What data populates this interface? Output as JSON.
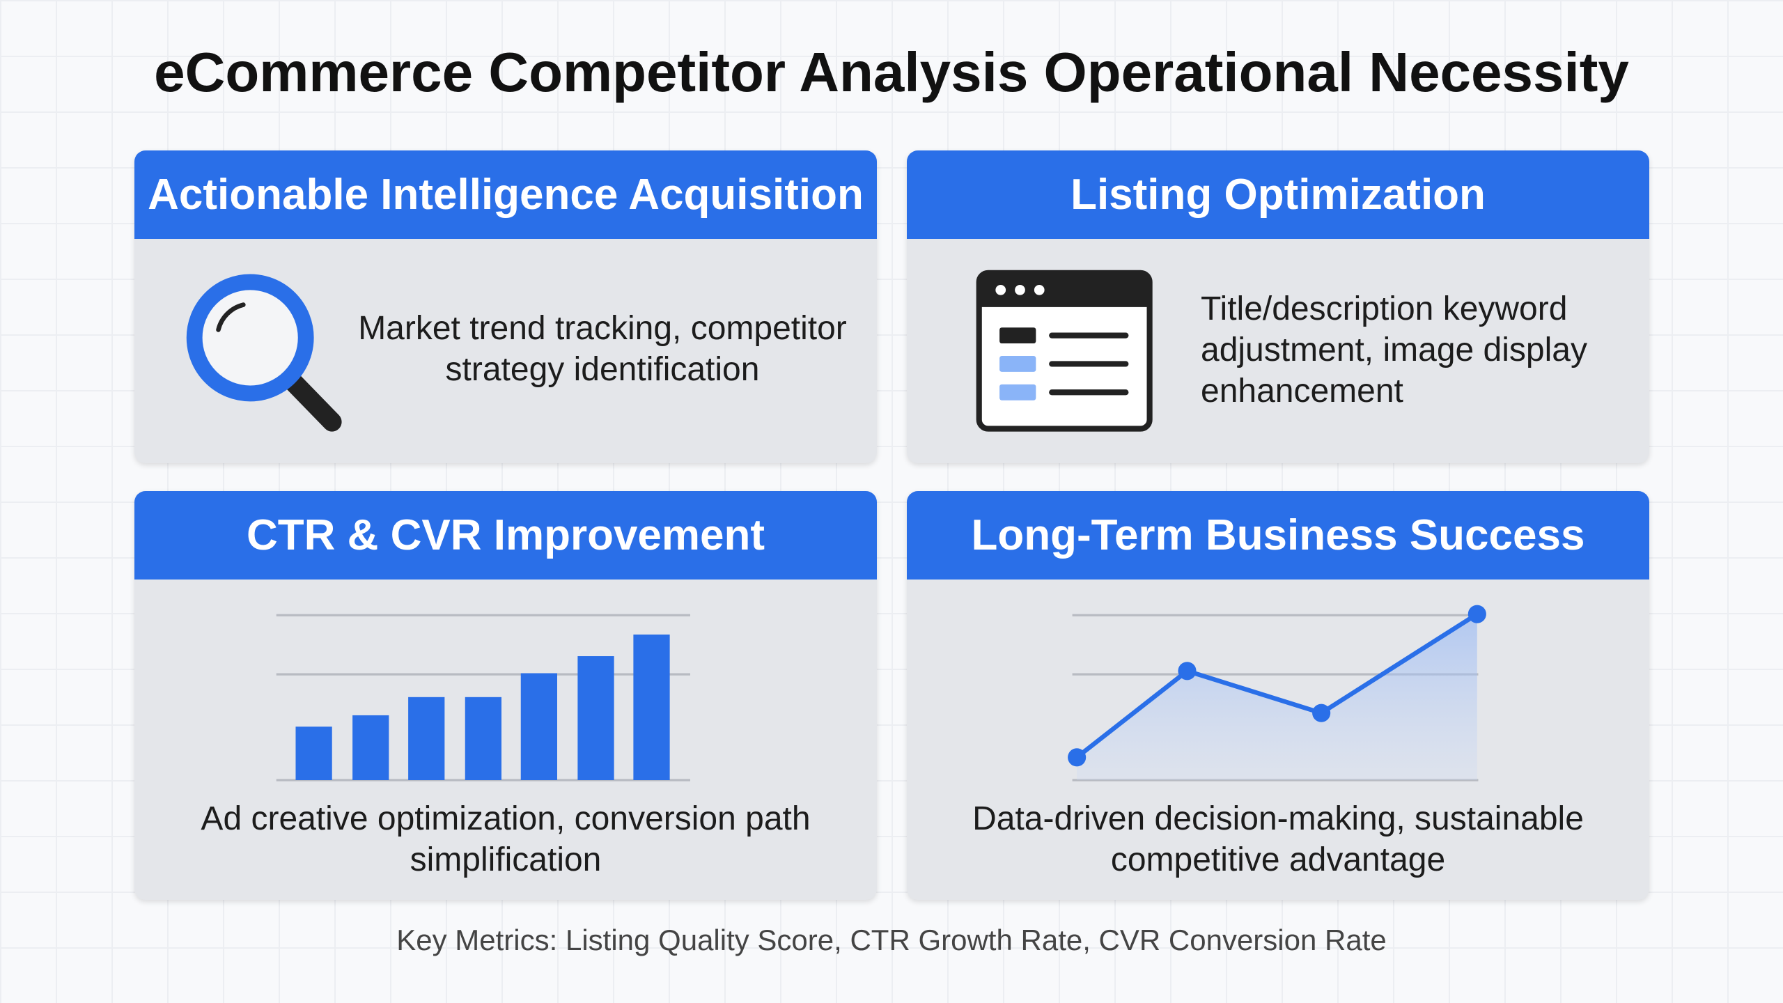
{
  "title": "eCommerce Competitor Analysis Operational Necessity",
  "cards": [
    {
      "title": "Actionable Intelligence Acquisition",
      "text": "Market trend tracking, competitor strategy identification"
    },
    {
      "title": "Listing Optimization",
      "text": "Title/description keyword adjustment, image display enhancement"
    },
    {
      "title": "CTR & CVR Improvement",
      "text": "Ad creative optimization, conversion path simplification"
    },
    {
      "title": "Long-Term Business Success",
      "text": "Data-driven decision-making, sustainable competitive advantage"
    }
  ],
  "footer": "Key Metrics: Listing Quality Score, CTR Growth Rate, CVR Conversion Rate"
}
